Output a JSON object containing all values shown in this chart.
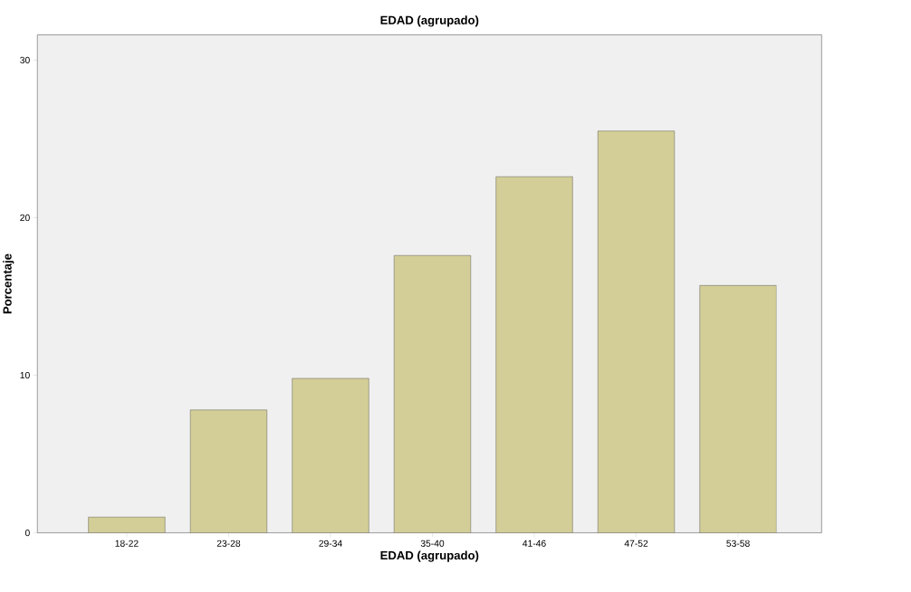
{
  "chart_data": {
    "type": "bar",
    "title": "EDAD (agrupado)",
    "xlabel": "EDAD (agrupado)",
    "ylabel": "Porcentaje",
    "categories": [
      "18-22",
      "23-28",
      "29-34",
      "35-40",
      "41-46",
      "47-52",
      "53-58"
    ],
    "values": [
      1.0,
      7.8,
      9.8,
      17.6,
      22.6,
      25.5,
      15.7
    ],
    "color": "#d3ce97",
    "ylim": [
      0,
      31.6
    ],
    "yticks": [
      0,
      10,
      20,
      30
    ]
  }
}
